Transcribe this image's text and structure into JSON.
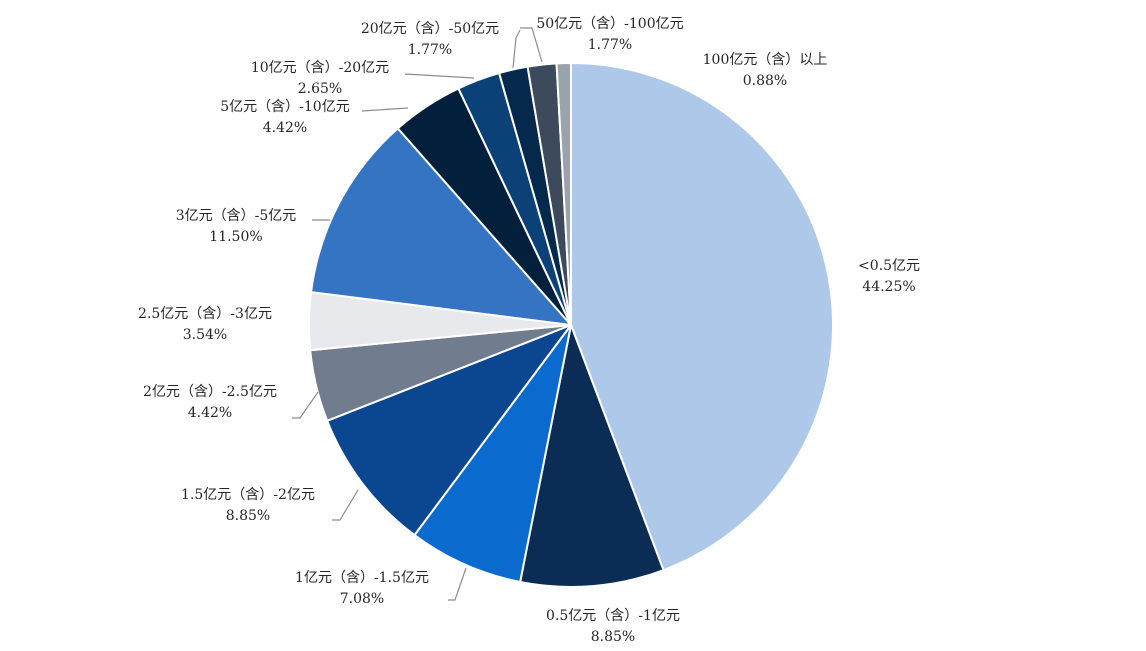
{
  "chart_data": {
    "type": "pie",
    "title": "",
    "start_angle_deg": 0,
    "direction": "clockwise",
    "legend": "none",
    "slices": [
      {
        "label": "<0.5亿元",
        "value": 44.25,
        "value_label": "44.25%",
        "color": "#aec8ea"
      },
      {
        "label": "0.5亿元（含）-1亿元",
        "value": 8.85,
        "value_label": "8.85%",
        "color": "#0b2c55"
      },
      {
        "label": "1亿元（含）-1.5亿元",
        "value": 7.08,
        "value_label": "7.08%",
        "color": "#0a6acd"
      },
      {
        "label": "1.5亿元（含）-2亿元",
        "value": 8.85,
        "value_label": "8.85%",
        "color": "#0b4690"
      },
      {
        "label": "2亿元（含）-2.5亿元",
        "value": 4.42,
        "value_label": "4.42%",
        "color": "#717d8e"
      },
      {
        "label": "2.5亿元（含）-3亿元",
        "value": 3.54,
        "value_label": "3.54%",
        "color": "#e7e9ec"
      },
      {
        "label": "3亿元（含）-5亿元",
        "value": 11.5,
        "value_label": "11.50%",
        "color": "#3474c2"
      },
      {
        "label": "5亿元（含）-10亿元",
        "value": 4.42,
        "value_label": "4.42%",
        "color": "#02203c"
      },
      {
        "label": "10亿元（含）-20亿元",
        "value": 2.65,
        "value_label": "2.65%",
        "color": "#0c4177"
      },
      {
        "label": "20亿元（含）-50亿元",
        "value": 1.77,
        "value_label": "1.77%",
        "color": "#05284d"
      },
      {
        "label": "50亿元（含）-100亿元",
        "value": 1.77,
        "value_label": "1.77%",
        "color": "#3c4a5b"
      },
      {
        "label": "100亿元（含）以上",
        "value": 0.88,
        "value_label": "0.88%",
        "color": "#9aa2ab"
      }
    ]
  }
}
